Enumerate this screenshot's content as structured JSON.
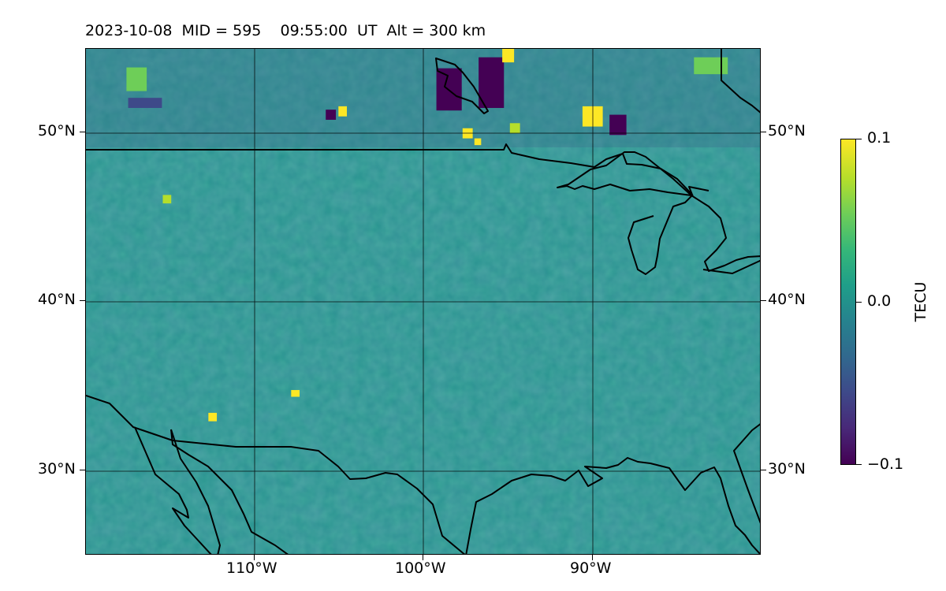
{
  "title": "2023-10-08  MID = 595    09:55:00  UT  Alt = 300 km",
  "map": {
    "lon_range": [
      -120,
      -80
    ],
    "lat_range": [
      25,
      55
    ],
    "parameter": "TEC perturbation",
    "colormap": "viridis",
    "gridlines": true,
    "lat_ticks": [
      {
        "lat": 50,
        "label": "50°N"
      },
      {
        "lat": 40,
        "label": "40°N"
      },
      {
        "lat": 30,
        "label": "30°N"
      }
    ],
    "lon_ticks": [
      {
        "lon": -110,
        "label": "110°W"
      },
      {
        "lon": -100,
        "label": "100°W"
      },
      {
        "lon": -90,
        "label": "90°W"
      }
    ]
  },
  "colorbar": {
    "label": "TECU",
    "min": -0.1,
    "max": 0.1,
    "ticks": [
      {
        "value": 0.1,
        "label": "0.1"
      },
      {
        "value": 0.0,
        "label": "0.0"
      },
      {
        "value": -0.1,
        "label": "−0.1"
      }
    ]
  },
  "anomalies": [
    {
      "lon": -98.5,
      "lat": 52.6,
      "value": -0.1,
      "w": 1.5,
      "h": 2.5
    },
    {
      "lon": -96.0,
      "lat": 53.0,
      "value": -0.1,
      "w": 1.5,
      "h": 3.0
    },
    {
      "lon": -88.5,
      "lat": 50.5,
      "value": -0.1,
      "w": 1.0,
      "h": 1.2
    },
    {
      "lon": -116.5,
      "lat": 51.8,
      "value": -0.06,
      "w": 2.0,
      "h": 0.6
    },
    {
      "lon": -105.5,
      "lat": 51.1,
      "value": -0.1,
      "w": 0.6,
      "h": 0.6
    },
    {
      "lon": -90.0,
      "lat": 51.0,
      "value": 0.1,
      "w": 1.2,
      "h": 1.2
    },
    {
      "lon": -95.0,
      "lat": 54.6,
      "value": 0.1,
      "w": 0.7,
      "h": 0.8
    },
    {
      "lon": -97.4,
      "lat": 50.0,
      "value": 0.1,
      "w": 0.6,
      "h": 0.6
    },
    {
      "lon": -96.8,
      "lat": 49.5,
      "value": 0.1,
      "w": 0.4,
      "h": 0.4
    },
    {
      "lon": -94.6,
      "lat": 50.3,
      "value": 0.08,
      "w": 0.6,
      "h": 0.6
    },
    {
      "lon": -104.8,
      "lat": 51.3,
      "value": 0.1,
      "w": 0.5,
      "h": 0.6
    },
    {
      "lon": -115.2,
      "lat": 46.1,
      "value": 0.08,
      "w": 0.5,
      "h": 0.5
    },
    {
      "lon": -107.6,
      "lat": 34.6,
      "value": 0.1,
      "w": 0.5,
      "h": 0.4
    },
    {
      "lon": -112.5,
      "lat": 33.2,
      "value": 0.1,
      "w": 0.5,
      "h": 0.5
    },
    {
      "lon": -117.0,
      "lat": 53.2,
      "value": 0.06,
      "w": 1.2,
      "h": 1.4
    },
    {
      "lon": -83.0,
      "lat": 54.0,
      "value": 0.05,
      "w": 2.0,
      "h": 1.0
    }
  ]
}
